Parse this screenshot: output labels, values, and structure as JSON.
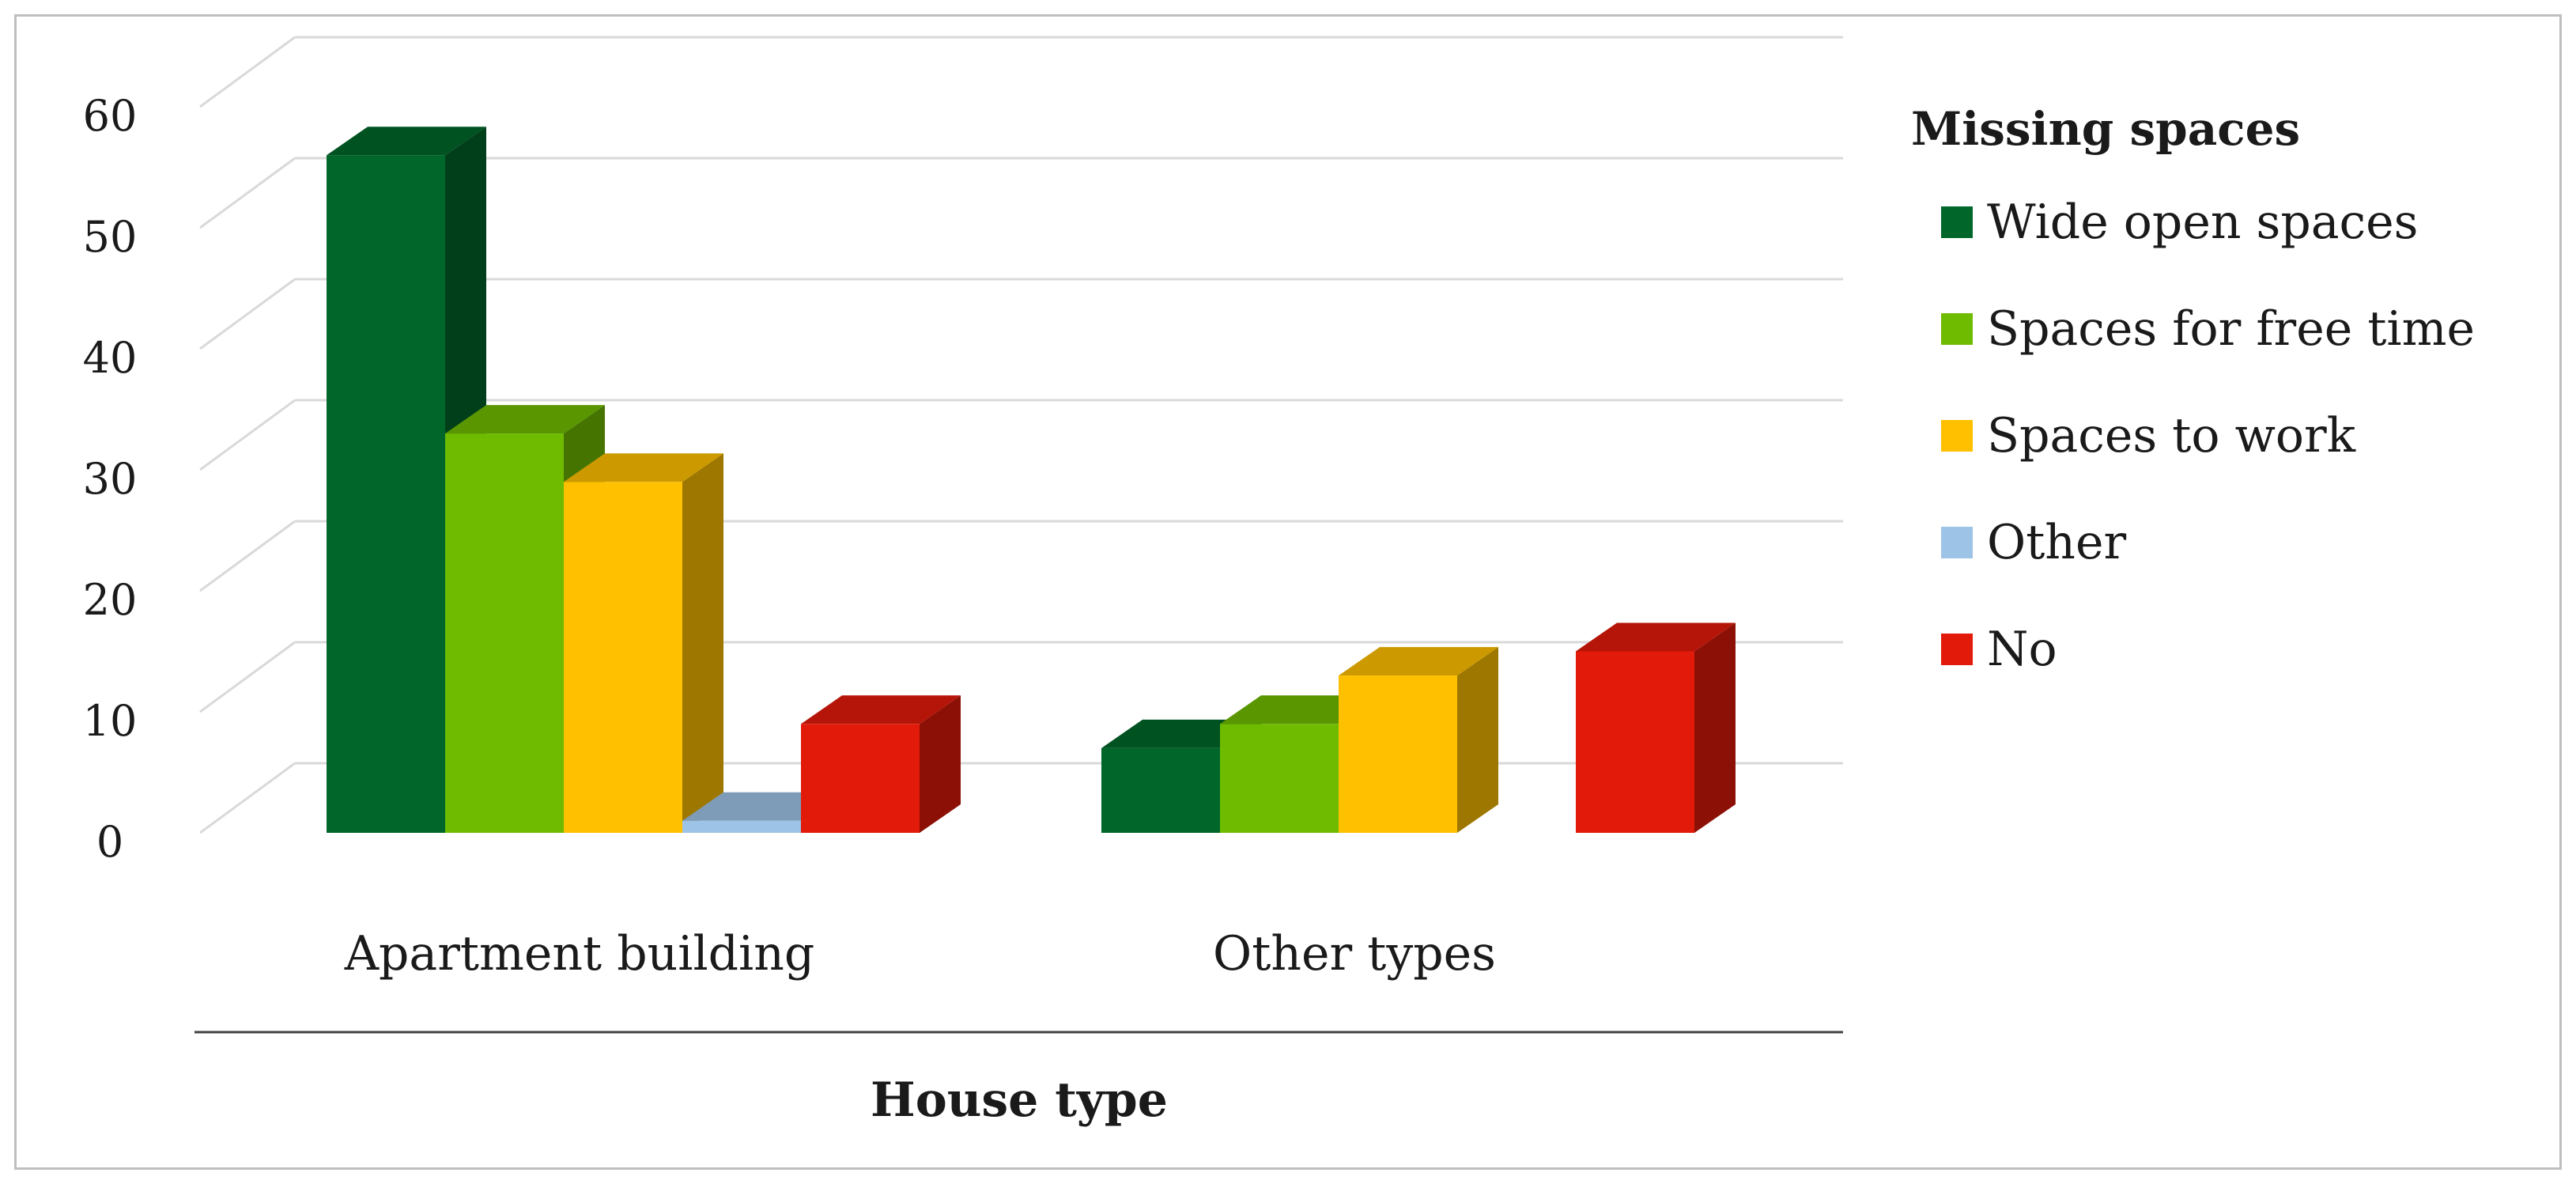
{
  "chart_data": {
    "type": "bar",
    "style": "3d-clustered-column",
    "categories": [
      "Apartment building",
      "Other types"
    ],
    "xlabel": "House type",
    "ylabel": "",
    "ylim": [
      0,
      60
    ],
    "yticks": [
      "0",
      "10",
      "20",
      "30",
      "40",
      "50",
      "60"
    ],
    "grid": true,
    "legend_title": "Missing spaces",
    "legend_position": "right",
    "series": [
      {
        "name": "Wide open spaces",
        "values": [
          56,
          7
        ],
        "color": "#006629"
      },
      {
        "name": "Spaces for free time",
        "values": [
          33,
          9
        ],
        "color": "#6fbb00"
      },
      {
        "name": "Spaces to work",
        "values": [
          29,
          13
        ],
        "color": "#ffc000"
      },
      {
        "name": "Other",
        "values": [
          1,
          0
        ],
        "color": "#9dc3e6"
      },
      {
        "name": "No",
        "values": [
          9,
          15
        ],
        "color": "#e21a0a"
      }
    ]
  }
}
